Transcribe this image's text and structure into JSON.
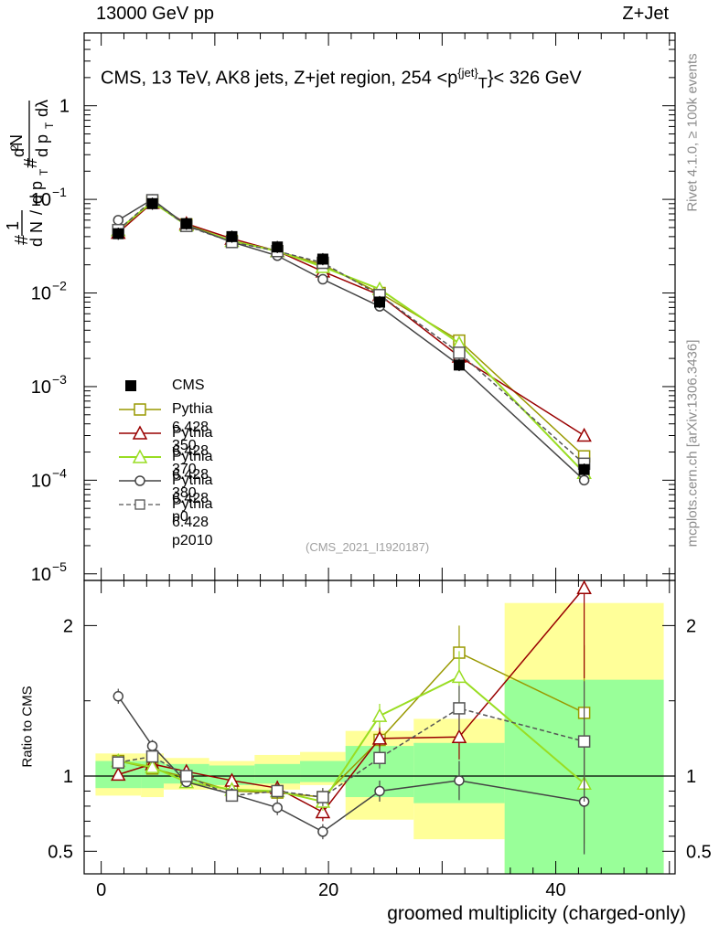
{
  "header": {
    "left": "13000 GeV pp",
    "right": "Z+Jet",
    "title_main": "CMS, 13 TeV, AK8 jets, Z+jet region, 254 <p",
    "title_sup": "{jet}",
    "title_sub": "T",
    "title_end": "}< 326 GeV"
  },
  "side": {
    "rivet": "Rivet 4.1.0, ≥ 100k events",
    "mcplots": "mcplots.cern.ch [arXiv:1306.3436]"
  },
  "analysis_id": "(CMS_2021_I1920187)",
  "axes": {
    "xlabel": "groomed multiplicity (charged-only)",
    "ylabel_ratio": "Ratio to CMS",
    "ylabel_main": "1/N dN/dp_T d^2N/dp_T dλ"
  },
  "chart_data": {
    "type": "line",
    "title": "CMS, 13 TeV, AK8 jets, Z+jet region, 254 < p_T^{jet} < 326 GeV",
    "xlabel": "groomed multiplicity (charged-only)",
    "xlim": [
      -1.5,
      50.5
    ],
    "main": {
      "yscale": "log",
      "ylim": [
        8.5e-06,
        6
      ],
      "yticks": [
        {
          "v": 1,
          "base": "1",
          "exp": ""
        },
        {
          "v": 0.1,
          "base": "10",
          "exp": "−1"
        },
        {
          "v": 0.01,
          "base": "10",
          "exp": "−2"
        },
        {
          "v": 0.001,
          "base": "10",
          "exp": "−3"
        },
        {
          "v": 0.0001,
          "base": "10",
          "exp": "−4"
        },
        {
          "v": 1e-05,
          "base": "10",
          "exp": "−5"
        }
      ]
    },
    "ratio": {
      "ylabel": "Ratio to CMS",
      "ylim": [
        0.35,
        2.3
      ],
      "yticks": [
        0.5,
        1,
        2
      ]
    },
    "xticks": [
      0,
      20,
      40
    ],
    "bins": [
      {
        "lo": -0.5,
        "hi": 3.5
      },
      {
        "lo": 3.5,
        "hi": 5.5
      },
      {
        "lo": 5.5,
        "hi": 9.5
      },
      {
        "lo": 9.5,
        "hi": 13.5
      },
      {
        "lo": 13.5,
        "hi": 17.5
      },
      {
        "lo": 17.5,
        "hi": 21.5
      },
      {
        "lo": 21.5,
        "hi": 27.5
      },
      {
        "lo": 27.5,
        "hi": 35.5
      },
      {
        "lo": 35.5,
        "hi": 49.5
      }
    ],
    "x": [
      1.5,
      4.5,
      7.5,
      11.5,
      15.5,
      19.5,
      24.5,
      31.5,
      42.5
    ],
    "data": {
      "name": "CMS",
      "values": [
        0.043,
        0.09,
        0.055,
        0.04,
        0.031,
        0.023,
        0.008,
        0.0017,
        0.00013
      ]
    },
    "band_yellow": [
      [
        0.87,
        1.15
      ],
      [
        0.86,
        1.15
      ],
      [
        0.91,
        1.12
      ],
      [
        0.91,
        1.1
      ],
      [
        0.91,
        1.14
      ],
      [
        0.94,
        1.16
      ],
      [
        0.71,
        1.3
      ],
      [
        0.58,
        1.38
      ],
      [
        0.35,
        2.15
      ]
    ],
    "band_green": [
      [
        0.92,
        1.1
      ],
      [
        0.92,
        1.1
      ],
      [
        0.95,
        1.08
      ],
      [
        0.94,
        1.07
      ],
      [
        0.95,
        1.08
      ],
      [
        0.96,
        1.1
      ],
      [
        0.86,
        1.2
      ],
      [
        0.82,
        1.22
      ],
      [
        0.35,
        1.64
      ]
    ],
    "series": [
      {
        "name": "Pythia 6.428 350",
        "color": "#999900",
        "marker": "square",
        "dashed": false,
        "values": [
          0.047,
          0.095,
          0.054,
          0.036,
          0.028,
          0.02,
          0.01,
          0.0031,
          0.00018
        ],
        "ratio": [
          1.1,
          1.05,
          0.99,
          0.9,
          0.89,
          0.86,
          1.24,
          1.82,
          1.42
        ],
        "ratio_err": [
          0.04,
          0.03,
          0.03,
          0.04,
          0.05,
          0.06,
          0.08,
          0.18,
          0.45
        ]
      },
      {
        "name": "Pythia 6.428 370",
        "color": "#990000",
        "marker": "triangle",
        "dashed": false,
        "values": [
          0.044,
          0.092,
          0.055,
          0.038,
          0.028,
          0.017,
          0.0095,
          0.0021,
          0.0003
        ],
        "ratio": [
          1.01,
          1.08,
          1.03,
          0.97,
          0.92,
          0.76,
          1.25,
          1.26,
          2.25
        ],
        "ratio_err": [
          0.04,
          0.03,
          0.03,
          0.04,
          0.05,
          0.06,
          0.08,
          0.15,
          0.6
        ]
      },
      {
        "name": "Pythia 6.428 380",
        "color": "#99dd22",
        "marker": "triangle",
        "dashed": false,
        "values": [
          0.047,
          0.094,
          0.053,
          0.036,
          0.028,
          0.019,
          0.011,
          0.0029,
          0.00012
        ],
        "ratio": [
          1.1,
          1.06,
          0.96,
          0.91,
          0.9,
          0.83,
          1.4,
          1.66,
          0.95
        ],
        "ratio_err": [
          0.04,
          0.03,
          0.03,
          0.04,
          0.05,
          0.06,
          0.08,
          0.17,
          0.4
        ]
      },
      {
        "name": "Pythia 6.428 p0",
        "color": "#444444",
        "marker": "circle",
        "dashed": false,
        "values": [
          0.06,
          0.1,
          0.053,
          0.035,
          0.025,
          0.014,
          0.0072,
          0.0017,
          0.0001
        ],
        "ratio": [
          1.53,
          1.2,
          0.96,
          0.88,
          0.79,
          0.63,
          0.9,
          0.97,
          0.83
        ],
        "ratio_err": [
          0.05,
          0.04,
          0.03,
          0.04,
          0.05,
          0.05,
          0.07,
          0.13,
          0.35
        ]
      },
      {
        "name": "Pythia 6.428 p2010",
        "color": "#555555",
        "marker": "square",
        "dashed": true,
        "values": [
          0.047,
          0.098,
          0.052,
          0.035,
          0.028,
          0.021,
          0.0095,
          0.0023,
          0.00015
        ],
        "ratio": [
          1.09,
          1.13,
          1.0,
          0.87,
          0.9,
          0.86,
          1.12,
          1.45,
          1.23
        ],
        "ratio_err": [
          0.04,
          0.03,
          0.03,
          0.04,
          0.05,
          0.06,
          0.07,
          0.15,
          0.4
        ]
      }
    ]
  }
}
